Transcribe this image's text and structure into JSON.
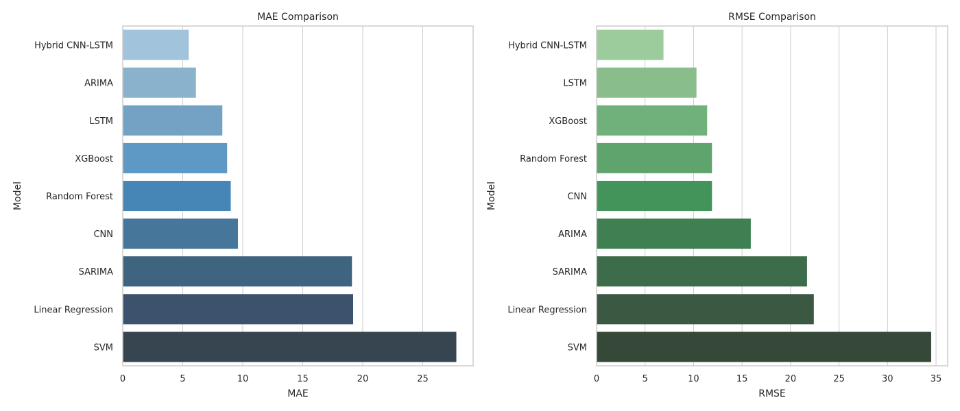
{
  "chart_data": [
    {
      "type": "bar",
      "orientation": "horizontal",
      "title": "MAE Comparison",
      "xlabel": "MAE",
      "ylabel": "Model",
      "xlim": [
        0,
        29.2
      ],
      "xticks": [
        0,
        5,
        10,
        15,
        20,
        25
      ],
      "grid": true,
      "categories": [
        "Hybrid CNN-LSTM",
        "ARIMA",
        "LSTM",
        "XGBoost",
        "Random Forest",
        "CNN",
        "SARIMA",
        "Linear Regression",
        "SVM"
      ],
      "values": [
        5.5,
        6.1,
        8.3,
        8.7,
        9.0,
        9.6,
        19.1,
        19.2,
        27.8
      ],
      "colors": [
        "#a1c3dc",
        "#8bb2cd",
        "#73a2c5",
        "#5e98c4",
        "#4586b7",
        "#47769b",
        "#3f647f",
        "#3b536d",
        "#36454f"
      ]
    },
    {
      "type": "bar",
      "orientation": "horizontal",
      "title": "RMSE Comparison",
      "xlabel": "RMSE",
      "ylabel": "Model",
      "xlim": [
        0,
        36.2
      ],
      "xticks": [
        0,
        5,
        10,
        15,
        20,
        25,
        30,
        35
      ],
      "grid": true,
      "categories": [
        "Hybrid CNN-LSTM",
        "LSTM",
        "XGBoost",
        "Random Forest",
        "CNN",
        "ARIMA",
        "SARIMA",
        "Linear Regression",
        "SVM"
      ],
      "values": [
        6.9,
        10.3,
        11.4,
        11.9,
        11.9,
        15.9,
        21.7,
        22.4,
        34.5
      ],
      "colors": [
        "#9dcc9c",
        "#89bd8b",
        "#70b07b",
        "#5fa46d",
        "#43945a",
        "#3f7f51",
        "#3d6c4a",
        "#3b5843",
        "#364837"
      ]
    }
  ]
}
